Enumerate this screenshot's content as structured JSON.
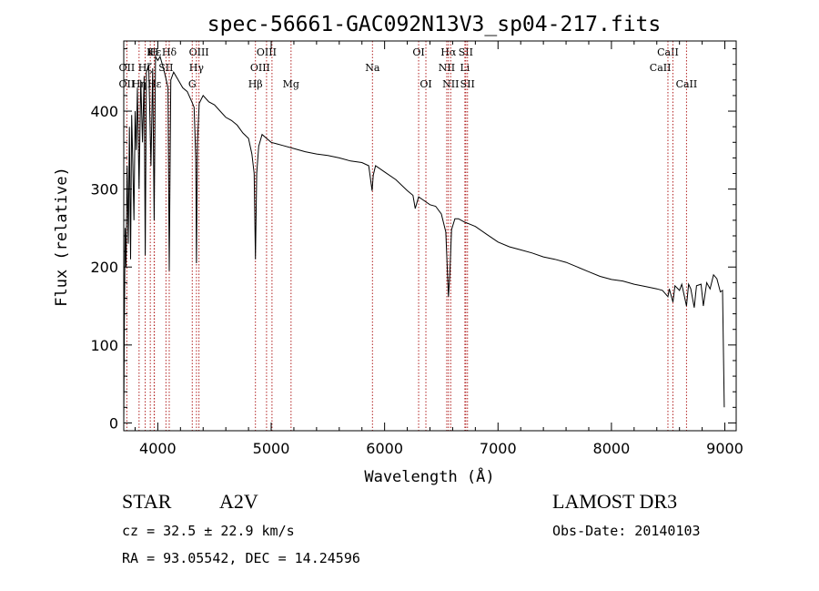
{
  "chart_data": {
    "type": "line",
    "title": "spec-56661-GAC092N13V3_sp04-217.fits",
    "xlabel": "Wavelength (Å)",
    "ylabel": "Flux (relative)",
    "xlim": [
      3700,
      9100
    ],
    "ylim": [
      -10,
      490
    ],
    "xticks": [
      4000,
      5000,
      6000,
      7000,
      8000,
      9000
    ],
    "yticks": [
      0,
      100,
      200,
      300,
      400
    ],
    "line_color": "#000000",
    "marker_color": "#b22222",
    "series": [
      {
        "name": "flux",
        "points": [
          [
            3700,
            0
          ],
          [
            3705,
            120
          ],
          [
            3712,
            250
          ],
          [
            3720,
            200
          ],
          [
            3730,
            330
          ],
          [
            3740,
            230
          ],
          [
            3750,
            380
          ],
          [
            3760,
            210
          ],
          [
            3770,
            395
          ],
          [
            3780,
            330
          ],
          [
            3790,
            260
          ],
          [
            3800,
            400
          ],
          [
            3810,
            350
          ],
          [
            3820,
            430
          ],
          [
            3835,
            300
          ],
          [
            3850,
            440
          ],
          [
            3865,
            360
          ],
          [
            3880,
            445
          ],
          [
            3889,
            215
          ],
          [
            3900,
            450
          ],
          [
            3920,
            460
          ],
          [
            3940,
            330
          ],
          [
            3955,
            455
          ],
          [
            3968,
            260
          ],
          [
            3980,
            470
          ],
          [
            4000,
            465
          ],
          [
            4020,
            470
          ],
          [
            4050,
            455
          ],
          [
            4075,
            440
          ],
          [
            4090,
            430
          ],
          [
            4101,
            195
          ],
          [
            4115,
            440
          ],
          [
            4140,
            450
          ],
          [
            4180,
            440
          ],
          [
            4220,
            430
          ],
          [
            4260,
            425
          ],
          [
            4300,
            412
          ],
          [
            4320,
            405
          ],
          [
            4335,
            340
          ],
          [
            4341,
            205
          ],
          [
            4350,
            360
          ],
          [
            4365,
            410
          ],
          [
            4400,
            420
          ],
          [
            4450,
            412
          ],
          [
            4500,
            408
          ],
          [
            4550,
            400
          ],
          [
            4600,
            392
          ],
          [
            4650,
            388
          ],
          [
            4700,
            382
          ],
          [
            4750,
            372
          ],
          [
            4800,
            365
          ],
          [
            4830,
            345
          ],
          [
            4850,
            320
          ],
          [
            4861,
            210
          ],
          [
            4872,
            320
          ],
          [
            4890,
            355
          ],
          [
            4920,
            370
          ],
          [
            4960,
            365
          ],
          [
            5000,
            360
          ],
          [
            5050,
            358
          ],
          [
            5100,
            356
          ],
          [
            5200,
            352
          ],
          [
            5300,
            348
          ],
          [
            5400,
            345
          ],
          [
            5500,
            343
          ],
          [
            5600,
            340
          ],
          [
            5700,
            336
          ],
          [
            5800,
            334
          ],
          [
            5860,
            330
          ],
          [
            5890,
            298
          ],
          [
            5900,
            318
          ],
          [
            5920,
            330
          ],
          [
            6000,
            322
          ],
          [
            6100,
            312
          ],
          [
            6200,
            298
          ],
          [
            6250,
            292
          ],
          [
            6270,
            275
          ],
          [
            6300,
            290
          ],
          [
            6350,
            285
          ],
          [
            6400,
            280
          ],
          [
            6450,
            278
          ],
          [
            6500,
            268
          ],
          [
            6540,
            245
          ],
          [
            6555,
            190
          ],
          [
            6563,
            162
          ],
          [
            6575,
            190
          ],
          [
            6590,
            248
          ],
          [
            6620,
            262
          ],
          [
            6650,
            262
          ],
          [
            6700,
            258
          ],
          [
            6800,
            252
          ],
          [
            6900,
            242
          ],
          [
            7000,
            232
          ],
          [
            7100,
            226
          ],
          [
            7200,
            222
          ],
          [
            7300,
            218
          ],
          [
            7400,
            213
          ],
          [
            7500,
            210
          ],
          [
            7600,
            206
          ],
          [
            7700,
            200
          ],
          [
            7800,
            194
          ],
          [
            7900,
            188
          ],
          [
            8000,
            184
          ],
          [
            8100,
            182
          ],
          [
            8200,
            178
          ],
          [
            8300,
            175
          ],
          [
            8400,
            172
          ],
          [
            8450,
            170
          ],
          [
            8498,
            162
          ],
          [
            8510,
            172
          ],
          [
            8542,
            155
          ],
          [
            8560,
            176
          ],
          [
            8600,
            170
          ],
          [
            8620,
            178
          ],
          [
            8662,
            150
          ],
          [
            8680,
            178
          ],
          [
            8700,
            172
          ],
          [
            8730,
            148
          ],
          [
            8750,
            176
          ],
          [
            8790,
            178
          ],
          [
            8810,
            150
          ],
          [
            8840,
            180
          ],
          [
            8870,
            172
          ],
          [
            8900,
            190
          ],
          [
            8930,
            185
          ],
          [
            8960,
            168
          ],
          [
            8980,
            170
          ],
          [
            8995,
            20
          ]
        ]
      }
    ],
    "line_markers": [
      {
        "label": "Hδ",
        "wavelength": 4101,
        "row": 1,
        "side": "center"
      },
      {
        "label": "OIII",
        "wavelength": 4363,
        "row": 1,
        "side": "center"
      },
      {
        "label": "OIII",
        "wavelength": 4959,
        "row": 1,
        "side": "center"
      },
      {
        "label": "OI",
        "wavelength": 6300,
        "row": 1,
        "side": "center"
      },
      {
        "label": "Hα",
        "wavelength": 6563,
        "row": 1,
        "side": "center"
      },
      {
        "label": "SII",
        "wavelength": 6716,
        "row": 1,
        "side": "center"
      },
      {
        "label": "CaII",
        "wavelength": 8498,
        "row": 1,
        "side": "center"
      },
      {
        "label": "Hγ",
        "wavelength": 4341,
        "row": 2,
        "side": "center"
      },
      {
        "label": "OIII",
        "wavelength": 5007,
        "row": 2,
        "side": "left"
      },
      {
        "label": "Na",
        "wavelength": 5893,
        "row": 2,
        "side": "center"
      },
      {
        "label": "NII",
        "wavelength": 6548,
        "row": 2,
        "side": "center"
      },
      {
        "label": "Li",
        "wavelength": 6708,
        "row": 2,
        "side": "center"
      },
      {
        "label": "CaII",
        "wavelength": 8542,
        "row": 2,
        "side": "left"
      },
      {
        "label": "G",
        "wavelength": 4304,
        "row": 3,
        "side": "center"
      },
      {
        "label": "Hβ",
        "wavelength": 4861,
        "row": 3,
        "side": "center"
      },
      {
        "label": "Mg",
        "wavelength": 5175,
        "row": 3,
        "side": "center"
      },
      {
        "label": "OI",
        "wavelength": 6364,
        "row": 3,
        "side": "center"
      },
      {
        "label": "NII",
        "wavelength": 6583,
        "row": 3,
        "side": "center"
      },
      {
        "label": "SII",
        "wavelength": 6731,
        "row": 3,
        "side": "center"
      },
      {
        "label": "CaII",
        "wavelength": 8662,
        "row": 3,
        "side": "center"
      },
      {
        "label": "Hε",
        "wavelength": 3970,
        "row": 1,
        "side": "center"
      },
      {
        "label": "K",
        "wavelength": 3934,
        "row": 1,
        "side": "center"
      },
      {
        "label": "Hζ",
        "wavelength": 3889,
        "row": 2,
        "side": "center"
      },
      {
        "label": "OII",
        "wavelength": 3727,
        "row": 2,
        "side": "center"
      },
      {
        "label": "OII",
        "wavelength": 3727,
        "row": 3,
        "side": "center"
      },
      {
        "label": "Hε",
        "wavelength": 3970,
        "row": 3,
        "side": "center"
      },
      {
        "label": "Hη",
        "wavelength": 3835,
        "row": 3,
        "side": "center"
      },
      {
        "label": "SII",
        "wavelength": 4072,
        "row": 2,
        "side": "center"
      },
      {
        "label": "H",
        "wavelength": 3968,
        "row": 1,
        "side": "center"
      }
    ]
  },
  "info": {
    "object_type": "STAR",
    "subclass": "A2V",
    "survey": "LAMOST DR3",
    "redshift": "cz = 32.5 ± 22.9 km/s",
    "obs_date": "Obs-Date: 20140103",
    "coords": "RA =  93.05542, DEC =  14.24596"
  }
}
